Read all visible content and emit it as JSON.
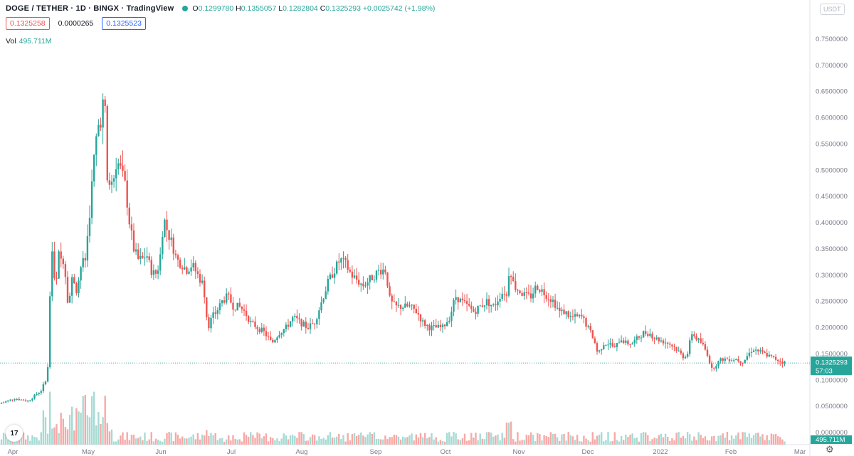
{
  "header": {
    "symbol": "DOGE / TETHER · 1D · BINGX · TradingView",
    "ohlc": {
      "o_label": "O",
      "o": "0.1299780",
      "h_label": "H",
      "h": "0.1355057",
      "l_label": "L",
      "l": "0.1282804",
      "c_label": "C",
      "c": "0.1325293",
      "change": "+0.0025742 (+1.98%)"
    },
    "bid": "0.1325258",
    "spread": "0.0000265",
    "ask": "0.1325523"
  },
  "volume": {
    "label": "Vol",
    "value": "495.711M"
  },
  "currency_button": "USDT",
  "logo_text": "17",
  "price_tag": {
    "value": "0.1325293",
    "countdown": "57:03",
    "color": "#26a69a"
  },
  "volume_tag": {
    "value": "495.711M"
  },
  "chart_data": {
    "type": "candlestick",
    "y_ticks": [
      "0.7500000",
      "0.7000000",
      "0.6500000",
      "0.6000000",
      "0.5500000",
      "0.5000000",
      "0.4500000",
      "0.4000000",
      "0.3500000",
      "0.3000000",
      "0.2500000",
      "0.2000000",
      "0.1500000",
      "0.1000000",
      "0.0500000",
      "0.0000000"
    ],
    "ylim": [
      0,
      0.78
    ],
    "x_ticks": [
      "Apr",
      "May",
      "Jun",
      "Jul",
      "Aug",
      "Sep",
      "Oct",
      "Nov",
      "Dec",
      "2022",
      "Feb",
      "Mar"
    ],
    "colors": {
      "up": "#26a69a",
      "down": "#ef5350",
      "vol_up": "#a6dbd4",
      "vol_down": "#f7a9a7"
    },
    "last_price": 0.1325293,
    "close_series": [
      [
        0,
        0.055
      ],
      [
        10,
        0.06
      ],
      [
        20,
        0.065
      ],
      [
        40,
        0.06
      ],
      [
        50,
        0.072
      ],
      [
        58,
        0.08
      ],
      [
        64,
        0.1
      ],
      [
        68,
        0.13
      ],
      [
        72,
        0.37
      ],
      [
        78,
        0.26
      ],
      [
        82,
        0.34
      ],
      [
        86,
        0.33
      ],
      [
        90,
        0.33
      ],
      [
        96,
        0.24
      ],
      [
        102,
        0.3
      ],
      [
        108,
        0.27
      ],
      [
        114,
        0.32
      ],
      [
        120,
        0.33
      ],
      [
        126,
        0.42
      ],
      [
        132,
        0.52
      ],
      [
        137,
        0.58
      ],
      [
        142,
        0.6
      ],
      [
        147,
        0.65
      ],
      [
        150,
        0.48
      ],
      [
        158,
        0.47
      ],
      [
        164,
        0.52
      ],
      [
        170,
        0.5
      ],
      [
        176,
        0.47
      ],
      [
        182,
        0.4
      ],
      [
        188,
        0.35
      ],
      [
        194,
        0.33
      ],
      [
        200,
        0.33
      ],
      [
        206,
        0.34
      ],
      [
        212,
        0.31
      ],
      [
        218,
        0.3
      ],
      [
        224,
        0.32
      ],
      [
        230,
        0.41
      ],
      [
        236,
        0.38
      ],
      [
        242,
        0.36
      ],
      [
        248,
        0.33
      ],
      [
        256,
        0.32
      ],
      [
        262,
        0.31
      ],
      [
        270,
        0.32
      ],
      [
        278,
        0.3
      ],
      [
        286,
        0.28
      ],
      [
        292,
        0.2
      ],
      [
        298,
        0.22
      ],
      [
        304,
        0.23
      ],
      [
        312,
        0.25
      ],
      [
        320,
        0.26
      ],
      [
        328,
        0.24
      ],
      [
        336,
        0.24
      ],
      [
        344,
        0.23
      ],
      [
        352,
        0.21
      ],
      [
        362,
        0.2
      ],
      [
        372,
        0.19
      ],
      [
        382,
        0.17
      ],
      [
        392,
        0.19
      ],
      [
        402,
        0.2
      ],
      [
        412,
        0.22
      ],
      [
        422,
        0.21
      ],
      [
        432,
        0.2
      ],
      [
        442,
        0.21
      ],
      [
        452,
        0.25
      ],
      [
        462,
        0.29
      ],
      [
        470,
        0.31
      ],
      [
        478,
        0.33
      ],
      [
        486,
        0.32
      ],
      [
        494,
        0.3
      ],
      [
        502,
        0.29
      ],
      [
        510,
        0.28
      ],
      [
        518,
        0.29
      ],
      [
        526,
        0.3
      ],
      [
        534,
        0.31
      ],
      [
        542,
        0.31
      ],
      [
        548,
        0.25
      ],
      [
        556,
        0.24
      ],
      [
        566,
        0.24
      ],
      [
        576,
        0.24
      ],
      [
        586,
        0.23
      ],
      [
        594,
        0.21
      ],
      [
        604,
        0.2
      ],
      [
        612,
        0.2
      ],
      [
        622,
        0.2
      ],
      [
        632,
        0.22
      ],
      [
        640,
        0.26
      ],
      [
        648,
        0.25
      ],
      [
        658,
        0.24
      ],
      [
        666,
        0.23
      ],
      [
        674,
        0.24
      ],
      [
        684,
        0.25
      ],
      [
        694,
        0.24
      ],
      [
        702,
        0.26
      ],
      [
        708,
        0.27
      ],
      [
        712,
        0.26
      ],
      [
        716,
        0.32
      ],
      [
        722,
        0.28
      ],
      [
        730,
        0.27
      ],
      [
        738,
        0.26
      ],
      [
        746,
        0.26
      ],
      [
        754,
        0.28
      ],
      [
        762,
        0.27
      ],
      [
        770,
        0.26
      ],
      [
        778,
        0.25
      ],
      [
        786,
        0.23
      ],
      [
        794,
        0.23
      ],
      [
        802,
        0.22
      ],
      [
        810,
        0.22
      ],
      [
        818,
        0.22
      ],
      [
        826,
        0.2
      ],
      [
        834,
        0.18
      ],
      [
        840,
        0.15
      ],
      [
        848,
        0.17
      ],
      [
        856,
        0.17
      ],
      [
        864,
        0.16
      ],
      [
        872,
        0.18
      ],
      [
        880,
        0.17
      ],
      [
        888,
        0.17
      ],
      [
        896,
        0.18
      ],
      [
        904,
        0.19
      ],
      [
        912,
        0.19
      ],
      [
        920,
        0.18
      ],
      [
        930,
        0.175
      ],
      [
        940,
        0.17
      ],
      [
        950,
        0.16
      ],
      [
        960,
        0.145
      ],
      [
        966,
        0.15
      ],
      [
        972,
        0.19
      ],
      [
        978,
        0.18
      ],
      [
        986,
        0.17
      ],
      [
        994,
        0.15
      ],
      [
        1000,
        0.12
      ],
      [
        1006,
        0.13
      ],
      [
        1014,
        0.14
      ],
      [
        1024,
        0.14
      ],
      [
        1034,
        0.14
      ],
      [
        1044,
        0.135
      ],
      [
        1052,
        0.15
      ],
      [
        1058,
        0.16
      ],
      [
        1066,
        0.155
      ],
      [
        1074,
        0.15
      ],
      [
        1082,
        0.145
      ],
      [
        1090,
        0.14
      ],
      [
        1098,
        0.135
      ],
      [
        1104,
        0.1325
      ]
    ]
  }
}
